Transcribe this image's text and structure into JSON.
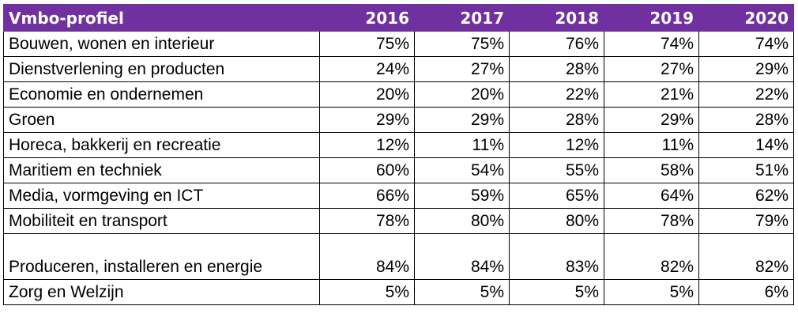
{
  "table": {
    "header": [
      "Vmbo-profiel",
      "2016",
      "2017",
      "2018",
      "2019",
      "2020"
    ],
    "header_bg": "#7030a0",
    "rows": [
      {
        "label": "Bouwen, wonen en interieur",
        "values": [
          "75%",
          "75%",
          "76%",
          "74%",
          "74%"
        ]
      },
      {
        "label": "Dienstverlening en producten",
        "values": [
          "24%",
          "27%",
          "28%",
          "27%",
          "29%"
        ]
      },
      {
        "label": "Economie en ondernemen",
        "values": [
          "20%",
          "20%",
          "22%",
          "21%",
          "22%"
        ]
      },
      {
        "label": "Groen",
        "values": [
          "29%",
          "29%",
          "28%",
          "29%",
          "28%"
        ]
      },
      {
        "label": "Horeca, bakkerij en recreatie",
        "values": [
          "12%",
          "11%",
          "12%",
          "11%",
          "14%"
        ]
      },
      {
        "label": "Maritiem en techniek",
        "values": [
          "60%",
          "54%",
          "55%",
          "58%",
          "51%"
        ]
      },
      {
        "label": "Media, vormgeving en ICT",
        "values": [
          "66%",
          "59%",
          "65%",
          "64%",
          "62%"
        ]
      },
      {
        "label": "Mobiliteit en transport",
        "values": [
          "78%",
          "80%",
          "80%",
          "78%",
          "79%"
        ]
      },
      {
        "label": "Produceren, installeren en energie",
        "values": [
          "84%",
          "84%",
          "83%",
          "82%",
          "82%"
        ]
      },
      {
        "label": "Zorg en Welzijn",
        "values": [
          "5%",
          "5%",
          "5%",
          "5%",
          "6%"
        ]
      }
    ]
  }
}
